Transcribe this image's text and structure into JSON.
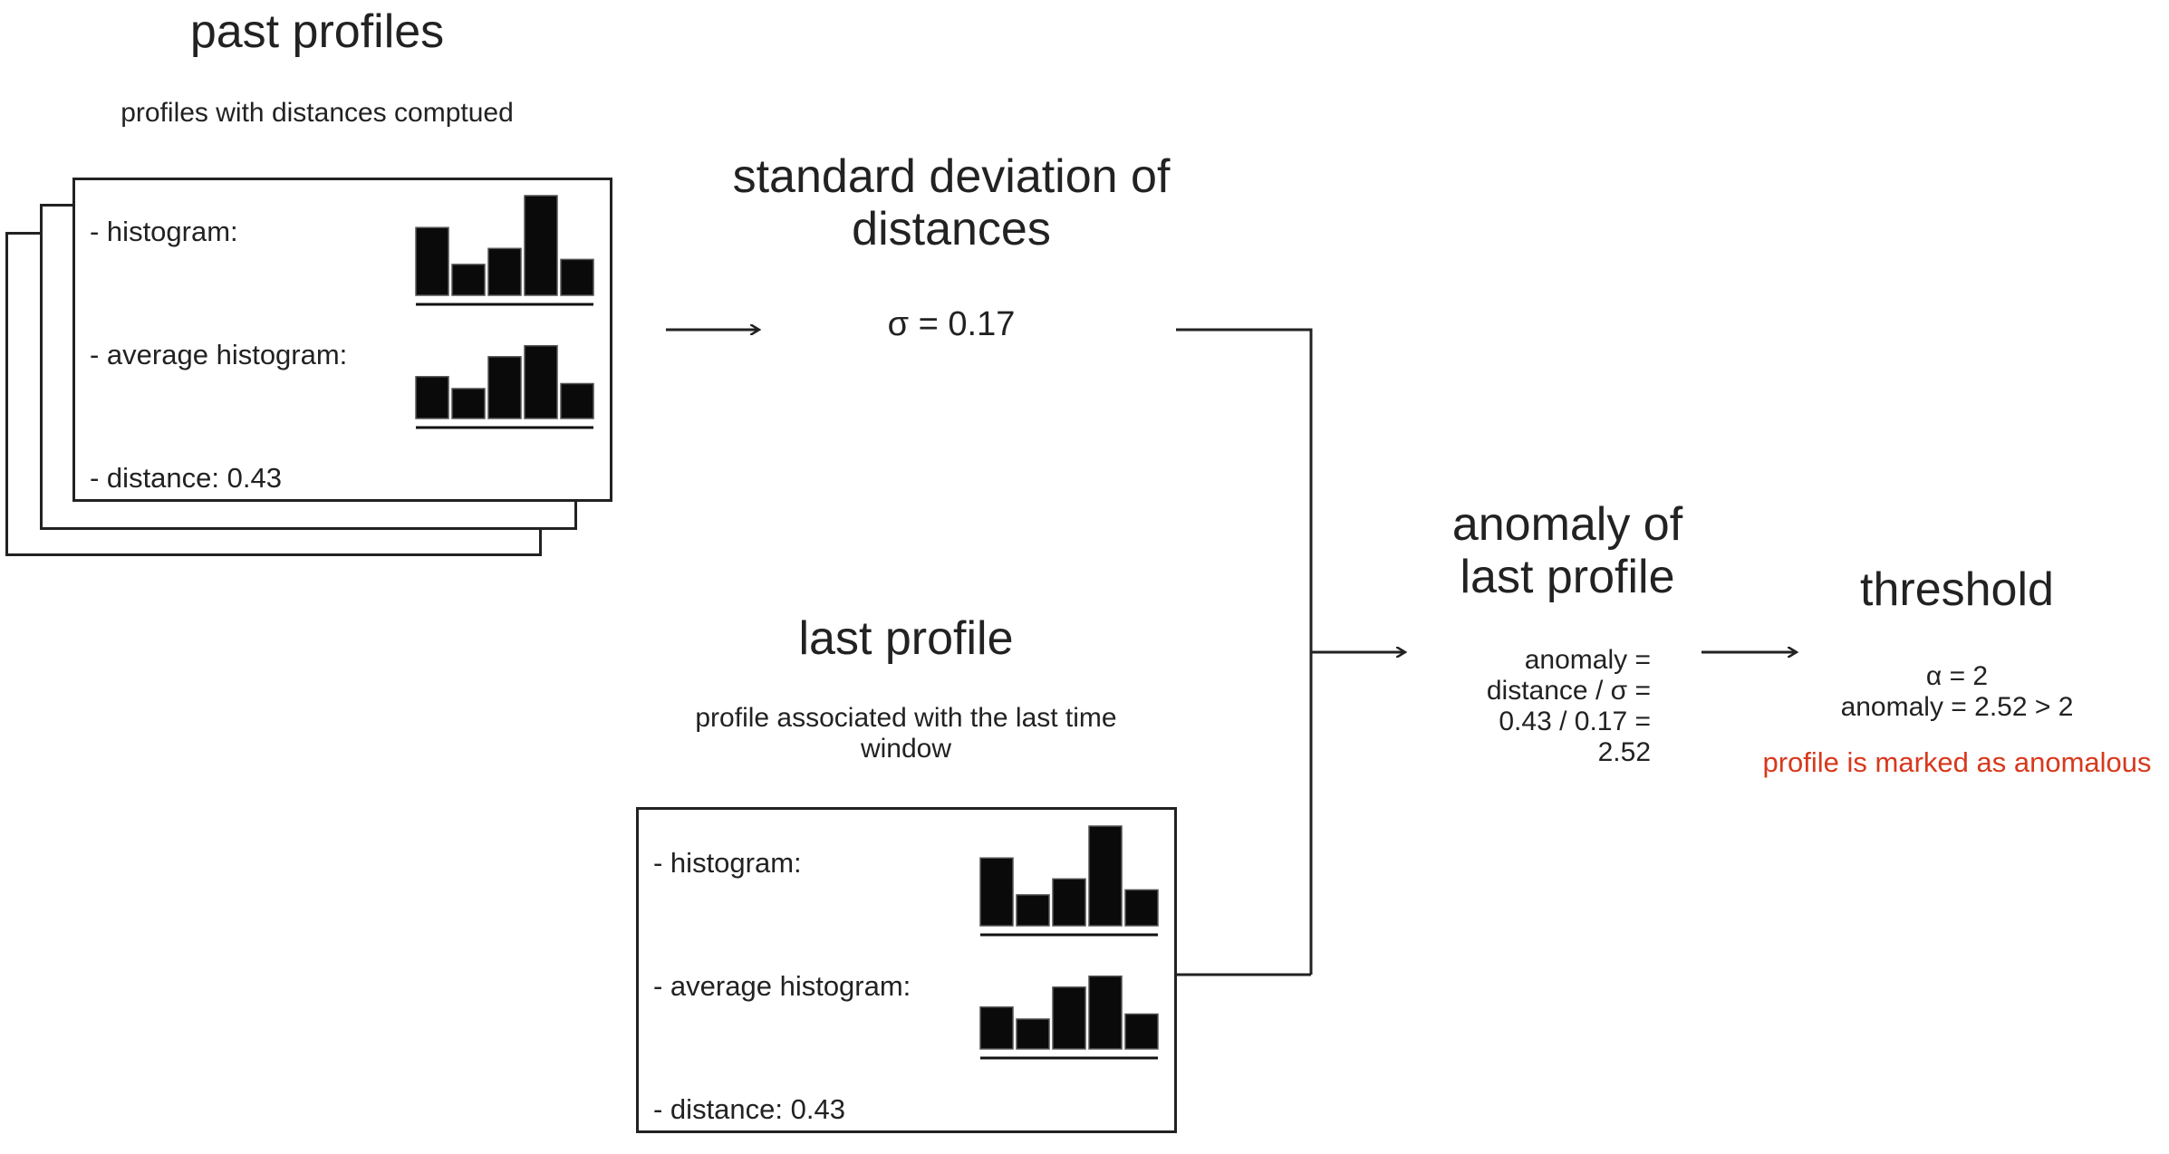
{
  "past_profiles": {
    "title": "past profiles",
    "subtitle": "profiles with distances comptued",
    "card": {
      "histogram_label": "- histogram:",
      "average_histogram_label": "- average histogram:",
      "distance_label": "- distance: 0.43",
      "histogram_values": [
        0.68,
        0.31,
        0.47,
        1.0,
        0.36
      ],
      "average_histogram_values": [
        0.42,
        0.3,
        0.62,
        0.73,
        0.35
      ]
    }
  },
  "std_dev": {
    "title_line1": "standard deviation of",
    "title_line2": "distances",
    "value": "σ = 0.17"
  },
  "last_profile": {
    "title": "last profile",
    "subtitle_line1": "profile associated with the last time",
    "subtitle_line2": "window",
    "card": {
      "histogram_label": "- histogram:",
      "average_histogram_label": "- average histogram:",
      "distance_label": "- distance: 0.43",
      "histogram_values": [
        0.68,
        0.31,
        0.47,
        1.0,
        0.36
      ],
      "average_histogram_values": [
        0.42,
        0.3,
        0.62,
        0.73,
        0.35
      ]
    }
  },
  "anomaly": {
    "title_line1": "anomaly of",
    "title_line2": "last profile",
    "line1": "anomaly =",
    "line2": "distance / σ =",
    "line3": "0.43 / 0.17 =",
    "line4": "2.52"
  },
  "threshold": {
    "title": "threshold",
    "line1": "α = 2",
    "line2": "anomaly = 2.52 > 2",
    "result": "profile is marked as anomalous",
    "result_color": "#d8381c"
  }
}
